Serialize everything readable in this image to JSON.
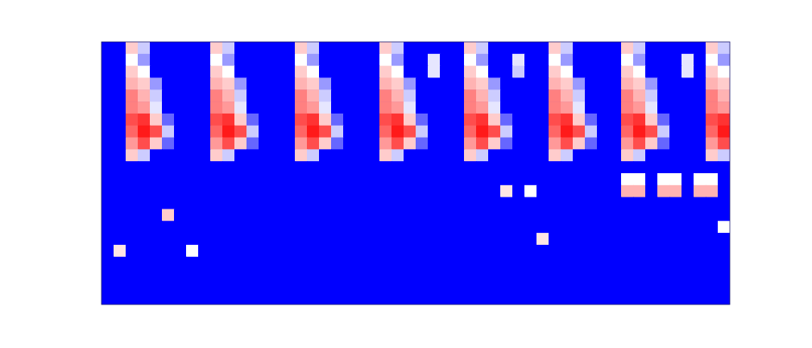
{
  "chart_data": {
    "type": "heatmap",
    "zlim": [
      0,
      1
    ],
    "tick_labels": false,
    "cells": [
      [
        0,
        0,
        0.6,
        0.4,
        0,
        0,
        0,
        0,
        0,
        0.6,
        0.4,
        0,
        0,
        0,
        0,
        0,
        0.6,
        0.4,
        0,
        0,
        0,
        0,
        0,
        0.6,
        0.4,
        0,
        0,
        0,
        0,
        0,
        0.6,
        0.4,
        0,
        0,
        0,
        0,
        0,
        0.6,
        0.4,
        0,
        0,
        0,
        0,
        0.6,
        0.4,
        0,
        0,
        0,
        0,
        0,
        0.6,
        0.4
      ],
      [
        0,
        0,
        0.5,
        0.3,
        0,
        0,
        0,
        0,
        0,
        0.5,
        0.3,
        0,
        0,
        0,
        0,
        0,
        0.5,
        0.3,
        0,
        0,
        0,
        0,
        0,
        0.5,
        0.3,
        0,
        0,
        0.45,
        0,
        0,
        0.5,
        0.3,
        0,
        0,
        0.45,
        0,
        0,
        0.5,
        0.3,
        0,
        0,
        0,
        0,
        0.5,
        0.3,
        0,
        0,
        0,
        0.45,
        0,
        0.5,
        0.3
      ],
      [
        0,
        0,
        0.6,
        0.5,
        0,
        0,
        0,
        0,
        0,
        0.6,
        0.5,
        0,
        0,
        0,
        0,
        0,
        0.6,
        0.5,
        0,
        0,
        0,
        0,
        0,
        0.6,
        0.5,
        0,
        0,
        0.45,
        0,
        0,
        0.6,
        0.5,
        0,
        0,
        0.4,
        0,
        0,
        0.6,
        0.5,
        0,
        0,
        0,
        0,
        0.6,
        0.5,
        0,
        0,
        0,
        0.45,
        0,
        0.6,
        0.5
      ],
      [
        0,
        0,
        0.65,
        0.6,
        0.3,
        0,
        0,
        0,
        0,
        0.65,
        0.6,
        0.3,
        0,
        0,
        0,
        0,
        0.65,
        0.6,
        0.3,
        0,
        0,
        0,
        0,
        0.65,
        0.6,
        0.3,
        0,
        0,
        0,
        0,
        0.65,
        0.6,
        0.3,
        0,
        0,
        0,
        0,
        0.65,
        0.6,
        0.3,
        0,
        0,
        0,
        0.65,
        0.6,
        0.3,
        0,
        0,
        0,
        0,
        0.65,
        0.6
      ],
      [
        0,
        0,
        0.75,
        0.65,
        0.4,
        0,
        0,
        0,
        0,
        0.75,
        0.65,
        0.4,
        0,
        0,
        0,
        0,
        0.75,
        0.65,
        0.4,
        0,
        0,
        0,
        0,
        0.75,
        0.65,
        0.4,
        0,
        0,
        0,
        0,
        0.75,
        0.65,
        0.4,
        0,
        0,
        0,
        0,
        0.75,
        0.65,
        0.4,
        0,
        0,
        0,
        0.75,
        0.65,
        0.4,
        0,
        0,
        0,
        0,
        0.75,
        0.65
      ],
      [
        0,
        0,
        0.75,
        0.7,
        0.45,
        0,
        0,
        0,
        0,
        0.75,
        0.7,
        0.45,
        0,
        0,
        0,
        0,
        0.75,
        0.7,
        0.45,
        0,
        0,
        0,
        0,
        0.75,
        0.7,
        0.45,
        0,
        0,
        0,
        0,
        0.75,
        0.7,
        0.45,
        0,
        0,
        0,
        0,
        0.75,
        0.7,
        0.45,
        0,
        0,
        0,
        0.75,
        0.7,
        0.45,
        0,
        0,
        0,
        0,
        0.75,
        0.7
      ],
      [
        0,
        0,
        0.85,
        0.9,
        0.6,
        0.2,
        0,
        0,
        0,
        0.85,
        0.9,
        0.6,
        0.2,
        0,
        0,
        0,
        0.85,
        0.9,
        0.6,
        0.2,
        0,
        0,
        0,
        0.85,
        0.9,
        0.6,
        0.2,
        0,
        0,
        0,
        0.85,
        0.9,
        0.6,
        0.2,
        0,
        0,
        0,
        0.85,
        0.9,
        0.6,
        0.2,
        0,
        0,
        0.85,
        0.9,
        0.6,
        0.2,
        0,
        0,
        0,
        0.85,
        0.9
      ],
      [
        0,
        0,
        0.8,
        0.95,
        0.85,
        0.4,
        0,
        0,
        0,
        0.8,
        0.95,
        0.85,
        0.4,
        0,
        0,
        0,
        0.8,
        0.95,
        0.85,
        0.4,
        0,
        0,
        0,
        0.8,
        0.95,
        0.85,
        0.4,
        0,
        0,
        0,
        0.8,
        0.95,
        0.85,
        0.4,
        0,
        0,
        0,
        0.8,
        0.95,
        0.85,
        0.4,
        0,
        0,
        0.8,
        0.95,
        0.85,
        0.4,
        0,
        0,
        0,
        0.8,
        0.95
      ],
      [
        0,
        0,
        0.7,
        0.85,
        0.6,
        0.2,
        0,
        0,
        0,
        0.7,
        0.85,
        0.6,
        0.2,
        0,
        0,
        0,
        0.7,
        0.85,
        0.6,
        0.2,
        0,
        0,
        0,
        0.7,
        0.85,
        0.6,
        0.2,
        0,
        0,
        0,
        0.7,
        0.85,
        0.6,
        0.2,
        0,
        0,
        0,
        0.7,
        0.85,
        0.6,
        0.2,
        0,
        0,
        0.7,
        0.85,
        0.6,
        0.2,
        0,
        0,
        0,
        0.7,
        0.85
      ],
      [
        0,
        0,
        0.6,
        0.4,
        0,
        0,
        0,
        0,
        0,
        0.6,
        0.4,
        0,
        0,
        0,
        0,
        0,
        0.6,
        0.4,
        0,
        0,
        0,
        0,
        0,
        0.6,
        0.4,
        0,
        0,
        0,
        0,
        0,
        0.6,
        0.4,
        0,
        0,
        0,
        0,
        0,
        0.6,
        0.4,
        0,
        0,
        0,
        0,
        0.6,
        0.4,
        0,
        0,
        0,
        0,
        0,
        0.6,
        0.4
      ],
      [
        0,
        0,
        0,
        0,
        0,
        0,
        0,
        0,
        0,
        0,
        0,
        0,
        0,
        0,
        0,
        0,
        0,
        0,
        0,
        0,
        0,
        0,
        0,
        0,
        0,
        0,
        0,
        0,
        0,
        0,
        0,
        0,
        0,
        0,
        0,
        0,
        0,
        0,
        0,
        0,
        0,
        0,
        0,
        0,
        0,
        0,
        0,
        0,
        0,
        0,
        0,
        0
      ],
      [
        0,
        0,
        0,
        0,
        0,
        0,
        0,
        0,
        0,
        0,
        0,
        0,
        0,
        0,
        0,
        0,
        0,
        0,
        0,
        0,
        0,
        0,
        0,
        0,
        0,
        0,
        0,
        0,
        0,
        0,
        0,
        0,
        0,
        0,
        0,
        0,
        0,
        0,
        0,
        0,
        0,
        0,
        0,
        0.5,
        0.5,
        0,
        0.5,
        0.5,
        0,
        0.5,
        0.5,
        0
      ],
      [
        0,
        0,
        0,
        0,
        0,
        0,
        0,
        0,
        0,
        0,
        0,
        0,
        0,
        0,
        0,
        0,
        0,
        0,
        0,
        0,
        0,
        0,
        0,
        0,
        0,
        0,
        0,
        0,
        0,
        0,
        0,
        0,
        0,
        0.55,
        0,
        0.5,
        0,
        0,
        0,
        0,
        0,
        0,
        0,
        0.65,
        0.65,
        0,
        0.65,
        0.65,
        0,
        0.65,
        0.65,
        0
      ],
      [
        0,
        0,
        0,
        0,
        0,
        0,
        0,
        0,
        0,
        0,
        0,
        0,
        0,
        0,
        0,
        0,
        0,
        0,
        0,
        0,
        0,
        0,
        0,
        0,
        0,
        0,
        0,
        0,
        0,
        0,
        0,
        0,
        0,
        0,
        0,
        0,
        0,
        0,
        0,
        0,
        0,
        0,
        0,
        0,
        0,
        0,
        0,
        0,
        0,
        0,
        0,
        0
      ],
      [
        0,
        0,
        0,
        0,
        0,
        0.6,
        0,
        0,
        0,
        0,
        0,
        0,
        0,
        0,
        0,
        0,
        0,
        0,
        0,
        0,
        0,
        0,
        0,
        0,
        0,
        0,
        0,
        0,
        0,
        0,
        0,
        0,
        0,
        0,
        0,
        0,
        0,
        0,
        0,
        0,
        0,
        0,
        0,
        0,
        0,
        0,
        0,
        0,
        0,
        0,
        0,
        0
      ],
      [
        0,
        0,
        0,
        0,
        0,
        0,
        0,
        0,
        0,
        0,
        0,
        0,
        0,
        0,
        0,
        0,
        0,
        0,
        0,
        0,
        0,
        0,
        0,
        0,
        0,
        0,
        0,
        0,
        0,
        0,
        0,
        0,
        0,
        0,
        0,
        0,
        0,
        0,
        0,
        0,
        0,
        0,
        0,
        0,
        0,
        0,
        0,
        0,
        0,
        0,
        0,
        0.5
      ],
      [
        0,
        0,
        0,
        0,
        0,
        0,
        0,
        0,
        0,
        0,
        0,
        0,
        0,
        0,
        0,
        0,
        0,
        0,
        0,
        0,
        0,
        0,
        0,
        0,
        0,
        0,
        0,
        0,
        0,
        0,
        0,
        0,
        0,
        0,
        0,
        0,
        0.55,
        0,
        0,
        0,
        0,
        0,
        0,
        0,
        0,
        0,
        0,
        0,
        0,
        0,
        0,
        0
      ],
      [
        0,
        0.55,
        0,
        0,
        0,
        0,
        0,
        0.5,
        0,
        0,
        0,
        0,
        0,
        0,
        0,
        0,
        0,
        0,
        0,
        0,
        0,
        0,
        0,
        0,
        0,
        0,
        0,
        0,
        0,
        0,
        0,
        0,
        0,
        0,
        0,
        0,
        0,
        0,
        0,
        0,
        0,
        0,
        0,
        0,
        0,
        0,
        0,
        0,
        0,
        0,
        0,
        0
      ],
      [
        0,
        0,
        0,
        0,
        0,
        0,
        0,
        0,
        0,
        0,
        0,
        0,
        0,
        0,
        0,
        0,
        0,
        0,
        0,
        0,
        0,
        0,
        0,
        0,
        0,
        0,
        0,
        0,
        0,
        0,
        0,
        0,
        0,
        0,
        0,
        0,
        0,
        0,
        0,
        0,
        0,
        0,
        0,
        0,
        0,
        0,
        0,
        0,
        0,
        0,
        0,
        0
      ],
      [
        0,
        0,
        0,
        0,
        0,
        0,
        0,
        0,
        0,
        0,
        0,
        0,
        0,
        0,
        0,
        0,
        0,
        0,
        0,
        0,
        0,
        0,
        0,
        0,
        0,
        0,
        0,
        0,
        0,
        0,
        0,
        0,
        0,
        0,
        0,
        0,
        0,
        0,
        0,
        0,
        0,
        0,
        0,
        0,
        0,
        0,
        0,
        0,
        0,
        0,
        0,
        0
      ],
      [
        0,
        0,
        0,
        0,
        0,
        0,
        0,
        0,
        0,
        0,
        0,
        0,
        0,
        0,
        0,
        0,
        0,
        0,
        0,
        0,
        0,
        0,
        0,
        0,
        0,
        0,
        0,
        0,
        0,
        0,
        0,
        0,
        0,
        0,
        0,
        0,
        0,
        0,
        0,
        0,
        0,
        0,
        0,
        0,
        0,
        0,
        0,
        0,
        0,
        0,
        0,
        0
      ],
      [
        0,
        0,
        0,
        0,
        0,
        0,
        0,
        0,
        0,
        0,
        0,
        0,
        0,
        0,
        0,
        0,
        0,
        0,
        0,
        0,
        0,
        0,
        0,
        0,
        0,
        0,
        0,
        0,
        0,
        0,
        0,
        0,
        0,
        0,
        0,
        0,
        0,
        0,
        0,
        0,
        0,
        0,
        0,
        0,
        0,
        0,
        0,
        0,
        0,
        0,
        0,
        0
      ]
    ]
  }
}
